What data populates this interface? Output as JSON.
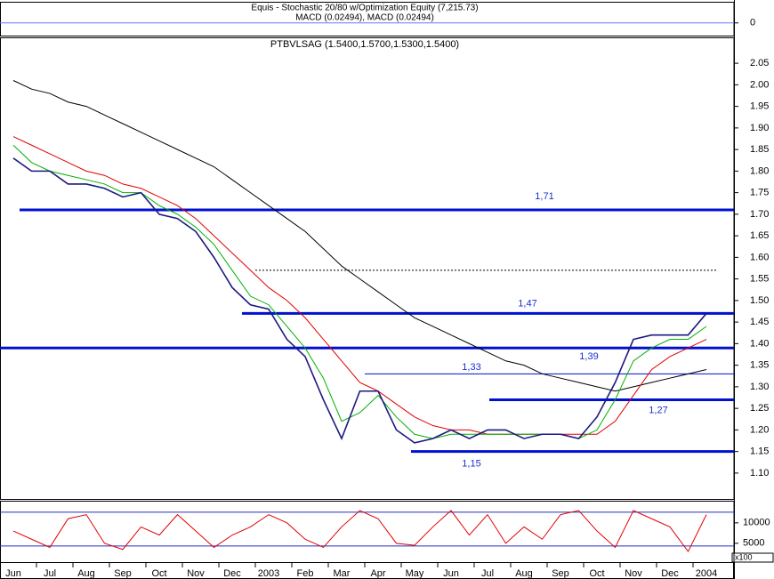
{
  "chart_data": [
    {
      "type": "line",
      "title": "Equis - Stochastic 20/80  w/Optimization Equity (7,215.73)",
      "subtitle": "MACD (0.02494), MACD (0.02494)",
      "ylim": [
        -0.6,
        1
      ],
      "yticks": [
        0
      ]
    },
    {
      "type": "line",
      "title": "PTBVLSAG (1.5400,1.5700,1.5300,1.5400)",
      "categories": [
        "Jun",
        null,
        "Jul",
        null,
        "Aug",
        null,
        "Sep",
        null,
        "Oct",
        null,
        "Nov",
        null,
        "Dec",
        null,
        "2003",
        null,
        "Feb",
        null,
        "Mar",
        null,
        "Apr",
        null,
        "May",
        null,
        "Jun",
        null,
        "Jul",
        null,
        "Aug",
        null,
        "Sep",
        null,
        "Oct",
        null,
        "Nov",
        null,
        "Dec",
        null,
        "2004",
        null
      ],
      "series": [
        {
          "color": "#000000",
          "values": [
            2.01,
            1.99,
            1.98,
            1.96,
            1.95,
            1.93,
            1.91,
            1.89,
            1.87,
            1.85,
            1.83,
            1.81,
            1.78,
            1.75,
            1.72,
            1.69,
            1.66,
            1.62,
            1.58,
            1.55,
            1.52,
            1.49,
            1.46,
            1.44,
            1.42,
            1.4,
            1.38,
            1.36,
            1.35,
            1.33,
            1.32,
            1.31,
            1.3,
            1.29,
            1.3,
            1.31,
            1.32,
            1.33,
            1.34,
            null
          ]
        },
        {
          "color": "#e00000",
          "values": [
            1.88,
            1.86,
            1.84,
            1.82,
            1.8,
            1.79,
            1.77,
            1.76,
            1.74,
            1.72,
            1.69,
            1.65,
            1.61,
            1.57,
            1.53,
            1.5,
            1.46,
            1.41,
            1.36,
            1.31,
            1.29,
            1.26,
            1.23,
            1.21,
            1.2,
            1.2,
            1.19,
            1.19,
            1.19,
            1.19,
            1.19,
            1.19,
            1.19,
            1.22,
            1.28,
            1.34,
            1.37,
            1.39,
            1.41,
            null
          ]
        },
        {
          "color": "#00b000",
          "values": [
            1.86,
            1.82,
            1.8,
            1.79,
            1.78,
            1.77,
            1.75,
            1.75,
            1.72,
            1.7,
            1.67,
            1.63,
            1.57,
            1.51,
            1.49,
            1.44,
            1.39,
            1.32,
            1.22,
            1.24,
            1.28,
            1.23,
            1.19,
            1.18,
            1.19,
            1.19,
            1.19,
            1.19,
            1.19,
            1.19,
            1.19,
            1.18,
            1.2,
            1.27,
            1.36,
            1.39,
            1.41,
            1.41,
            1.44,
            null
          ]
        },
        {
          "color": "#1a1a80",
          "values": [
            1.83,
            1.8,
            1.8,
            1.77,
            1.77,
            1.76,
            1.74,
            1.75,
            1.7,
            1.69,
            1.66,
            1.6,
            1.53,
            1.49,
            1.48,
            1.41,
            1.37,
            1.27,
            1.18,
            1.29,
            1.29,
            1.2,
            1.17,
            1.18,
            1.2,
            1.18,
            1.2,
            1.2,
            1.18,
            1.19,
            1.19,
            1.18,
            1.23,
            1.31,
            1.41,
            1.42,
            1.42,
            1.42,
            1.47,
            null
          ]
        }
      ],
      "levels": [
        {
          "value": 1.71,
          "label": "1,71"
        },
        {
          "value": 1.47,
          "label": "1,47"
        },
        {
          "value": 1.39,
          "label": "1,39"
        },
        {
          "value": 1.33,
          "label": "1,33"
        },
        {
          "value": 1.27,
          "label": "1,27"
        },
        {
          "value": 1.15,
          "label": "1,15"
        }
      ],
      "reference_line": 1.57,
      "ylim": [
        1.04,
        2.11
      ],
      "yticks": [
        {
          "value": 1.1,
          "label": "1.10"
        },
        {
          "value": 1.15,
          "label": "1.15"
        },
        {
          "value": 1.2,
          "label": "1.20"
        },
        {
          "value": 1.25,
          "label": "1.25"
        },
        {
          "value": 1.3,
          "label": "1.30"
        },
        {
          "value": 1.35,
          "label": "1.35"
        },
        {
          "value": 1.4,
          "label": "1.40"
        },
        {
          "value": 1.45,
          "label": "1.45"
        },
        {
          "value": 1.5,
          "label": "1.50"
        },
        {
          "value": 1.55,
          "label": "1.55"
        },
        {
          "value": 1.6,
          "label": "1.60"
        },
        {
          "value": 1.65,
          "label": "1.65"
        },
        {
          "value": 1.7,
          "label": "1.70"
        },
        {
          "value": 1.75,
          "label": "1.75"
        },
        {
          "value": 1.8,
          "label": "1.80"
        },
        {
          "value": 1.85,
          "label": "1.85"
        },
        {
          "value": 1.9,
          "label": "1.90"
        },
        {
          "value": 1.95,
          "label": "1.95"
        },
        {
          "value": 2.0,
          "label": "2.00"
        },
        {
          "value": 2.05,
          "label": "2.05"
        }
      ]
    },
    {
      "type": "line",
      "series": [
        {
          "color": "#e00000",
          "values": [
            8000,
            6000,
            4000,
            11000,
            12000,
            5000,
            3500,
            9000,
            7000,
            12000,
            8000,
            4000,
            7000,
            9000,
            12000,
            10000,
            6000,
            4000,
            9000,
            13000,
            11000,
            5000,
            4500,
            9000,
            13000,
            7000,
            12000,
            5000,
            9000,
            6000,
            12000,
            13000,
            8000,
            4000,
            13000,
            11000,
            9000,
            3000,
            12000,
            null
          ]
        }
      ],
      "hlines": [
        12600,
        4350
      ],
      "ylim": [
        400,
        15400
      ],
      "yticks": [
        5000,
        10000
      ],
      "unit_label": "x100"
    }
  ]
}
